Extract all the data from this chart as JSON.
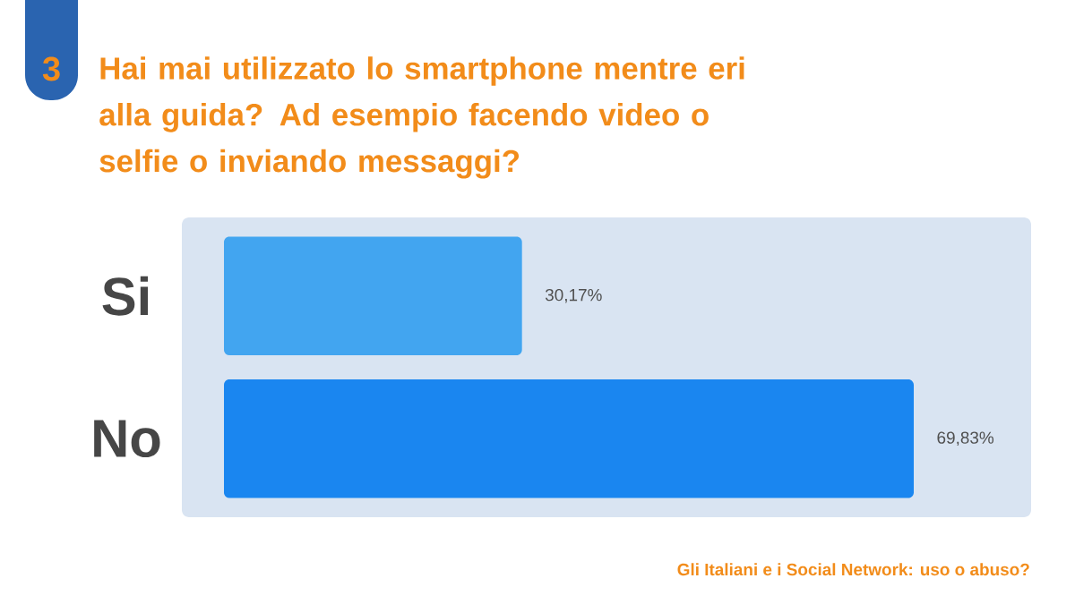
{
  "chart_data": {
    "type": "bar",
    "orientation": "horizontal",
    "title": "Hai mai utilizzato lo smartphone mentre eri alla guida? Ad esempio facendo video o selfie o inviando messaggi?",
    "categories": [
      "Si",
      "No"
    ],
    "values": [
      30.17,
      69.83
    ],
    "colors": [
      "#42a5f0",
      "#1a86f0"
    ],
    "value_labels": [
      "30,17%",
      "69,83%"
    ],
    "tick_labels": "y",
    "annotations": [
      "3",
      "Gli Italiani e i Social Network: uso o abuso?"
    ]
  }
}
